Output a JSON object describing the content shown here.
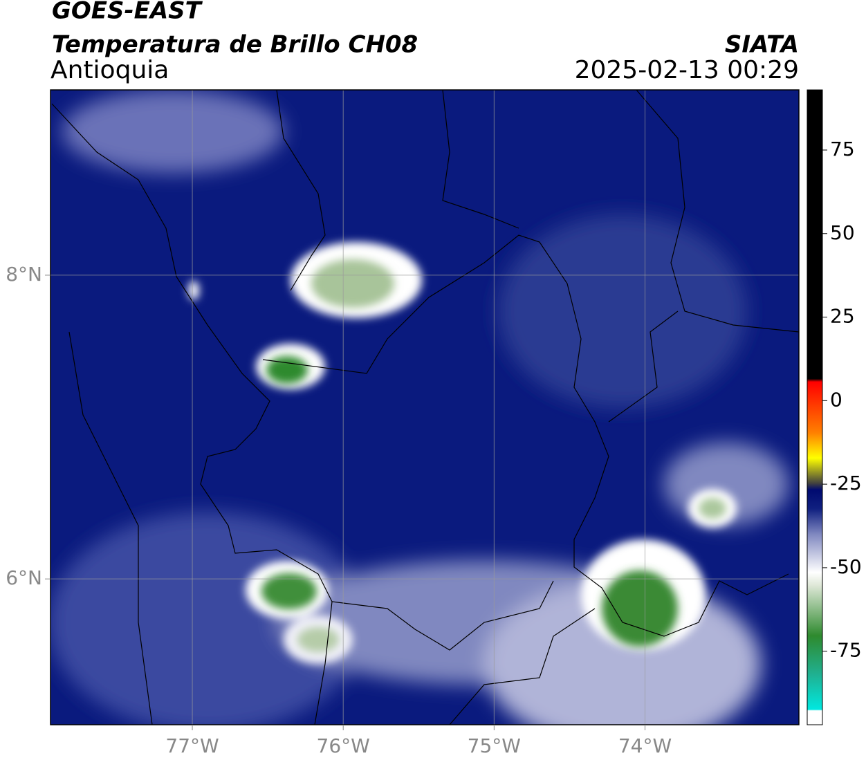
{
  "header": {
    "satellite": "GOES-EAST",
    "product": "Temperatura de Brillo CH08",
    "region": "Antioquia",
    "source": "SIATA",
    "datetime": "2025-02-13 00:29"
  },
  "map": {
    "xlim": [
      -77.94,
      -72.98
    ],
    "ylim": [
      5.04,
      9.22
    ],
    "xticks": [
      {
        "value": -77,
        "label": "77°W"
      },
      {
        "value": -76,
        "label": "76°W"
      },
      {
        "value": -75,
        "label": "75°W"
      },
      {
        "value": -74,
        "label": "74°W"
      }
    ],
    "yticks": [
      {
        "value": 8,
        "label": "8°N"
      },
      {
        "value": 6,
        "label": "6°N"
      }
    ],
    "grid": true
  },
  "colorbar": {
    "lim": [
      -97,
      93
    ],
    "ticks": [
      75,
      50,
      25,
      0,
      -25,
      -50,
      -75
    ]
  }
}
